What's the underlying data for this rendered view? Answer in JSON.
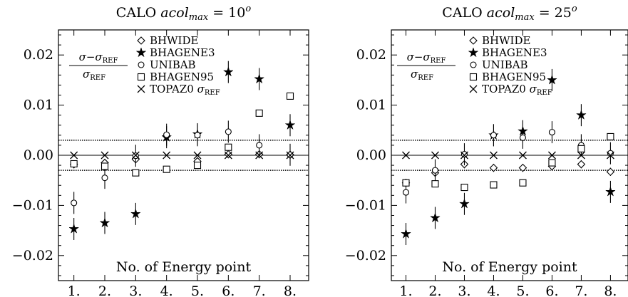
{
  "figure": {
    "legend_labels": [
      "BHWIDE",
      "BHAGENE3",
      "UNIBAB",
      "BHAGEN95",
      "TOPAZ0"
    ],
    "legend_sigma_ref": "σ",
    "legend_sigma_ref_sub": "REF",
    "ratio_numerator": "σ−σ",
    "ratio_sub": "REF",
    "ratio_denominator": "σ"
  },
  "chart_data": [
    {
      "type": "scatter",
      "title_prefix": "CALO ",
      "title_var": "acol",
      "title_sub": "max",
      "title_eq": " = 10",
      "title_sup": "o",
      "xlabel": "No. of Energy point",
      "categories": [
        "1.",
        "2.",
        "3.",
        "4.",
        "5.",
        "6.",
        "7.",
        "8."
      ],
      "xlim": [
        0.5,
        8.6
      ],
      "ylim": [
        -0.025,
        0.025
      ],
      "yticks": [
        0.02,
        0.01,
        0.0,
        -0.01,
        -0.02
      ],
      "ytick_labels": [
        "0.02",
        "0.01",
        "0.00",
        "−0.01",
        "−0.02"
      ],
      "band": [
        -0.003,
        0.003
      ],
      "series": [
        {
          "name": "BHWIDE",
          "marker": "diamond",
          "values": [
            -0.0018,
            -0.0015,
            -0.0008,
            0.0038,
            -0.0012,
            0.0002,
            0.0002,
            0.0001
          ],
          "err": [
            0.0008,
            0.0008,
            0.0008,
            0.0008,
            0.0008,
            0.0008,
            0.0008,
            0.0008
          ]
        },
        {
          "name": "BHAGENE3",
          "marker": "star",
          "values": [
            -0.0147,
            -0.0135,
            -0.0117,
            0.0036,
            0.0042,
            0.0166,
            0.0152,
            0.006
          ],
          "err": [
            0.0022,
            0.0022,
            0.0022,
            0.0022,
            0.0022,
            0.0022,
            0.0022,
            0.0022
          ]
        },
        {
          "name": "UNIBAB",
          "marker": "circle",
          "values": [
            -0.0095,
            -0.0045,
            -0.0001,
            0.0041,
            0.004,
            0.0047,
            0.002,
            0.0001
          ],
          "err": [
            0.0022,
            0.0022,
            0.0022,
            0.0022,
            0.0022,
            0.0022,
            0.0022,
            0.0022
          ]
        },
        {
          "name": "BHAGEN95",
          "marker": "square",
          "values": [
            -0.0017,
            -0.0022,
            -0.0035,
            -0.0028,
            -0.002,
            0.0016,
            0.0084,
            0.0118
          ],
          "err": [
            0.0003,
            0.0003,
            0.0003,
            0.0003,
            0.0003,
            0.0003,
            0.0003,
            0.0003
          ]
        },
        {
          "name": "TOPAZ0",
          "marker": "cross",
          "values": [
            0,
            0,
            0,
            0,
            0,
            0,
            0,
            0
          ],
          "err": [
            0,
            0,
            0,
            0,
            0,
            0,
            0,
            0
          ]
        }
      ]
    },
    {
      "type": "scatter",
      "title_prefix": "CALO ",
      "title_var": "acol",
      "title_sub": "max",
      "title_eq": " = 25",
      "title_sup": "o",
      "xlabel": "No. of Energy point",
      "categories": [
        "1.",
        "2.",
        "3.",
        "4.",
        "5.",
        "6.",
        "7.",
        "8."
      ],
      "xlim": [
        0.5,
        8.6
      ],
      "ylim": [
        -0.025,
        0.025
      ],
      "yticks": [
        0.02,
        0.01,
        0.0,
        -0.01,
        -0.02
      ],
      "ytick_labels": [
        "0.02",
        "0.01",
        "0.00",
        "−0.01",
        "−0.02"
      ],
      "band": [
        -0.003,
        0.003
      ],
      "series": [
        {
          "name": "BHWIDE",
          "marker": "diamond",
          "values": [
            -0.0055,
            -0.0035,
            -0.0018,
            -0.0025,
            -0.0025,
            -0.0022,
            -0.0018,
            -0.0033
          ],
          "err": [
            0.0008,
            0.0008,
            0.0008,
            0.0008,
            0.0008,
            0.0008,
            0.0008,
            0.0008
          ]
        },
        {
          "name": "BHAGENE3",
          "marker": "star",
          "values": [
            -0.0157,
            -0.0125,
            -0.0097,
            0.004,
            0.0048,
            0.015,
            0.008,
            -0.0073
          ],
          "err": [
            0.0022,
            0.0022,
            0.0022,
            0.0022,
            0.0022,
            0.0022,
            0.0022,
            0.0022
          ]
        },
        {
          "name": "UNIBAB",
          "marker": "circle",
          "values": [
            -0.0074,
            -0.003,
            0.0002,
            0.004,
            0.0035,
            0.0046,
            0.002,
            0.0004
          ],
          "err": [
            0.0022,
            0.0022,
            0.0022,
            0.0022,
            0.0022,
            0.0022,
            0.0022,
            0.0022
          ]
        },
        {
          "name": "BHAGEN95",
          "marker": "square",
          "values": [
            -0.0055,
            -0.0057,
            -0.0064,
            -0.0059,
            -0.0055,
            -0.0015,
            0.0013,
            0.0037
          ],
          "err": [
            0.0003,
            0.0003,
            0.0003,
            0.0003,
            0.0003,
            0.0003,
            0.0003,
            0.0003
          ]
        },
        {
          "name": "TOPAZ0",
          "marker": "cross",
          "values": [
            0,
            0,
            0,
            0,
            0,
            0,
            0,
            0
          ],
          "err": [
            0,
            0,
            0,
            0,
            0,
            0,
            0,
            0
          ]
        }
      ]
    }
  ]
}
